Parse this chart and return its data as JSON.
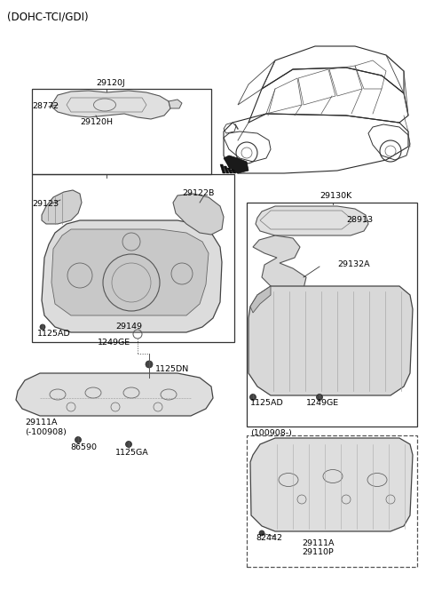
{
  "title": "(DOHC-TCI/GDI)",
  "bg_color": "#ffffff",
  "title_fontsize": 8.5,
  "label_fontsize": 6.8,
  "small_fontsize": 6.2,
  "parts": {
    "main_label": "29120J",
    "gasket_label": "28772",
    "gasket_sub": "29120H",
    "inner_label1": "29123",
    "inner_label2": "29122B",
    "bolt1": "1125AD",
    "bolt2": "29149",
    "bolt3": "1249GE",
    "bolt_dn": "1125DN",
    "right_box_label": "29130K",
    "right_part1": "28913",
    "right_part2": "29132A",
    "right_bolt1": "1125AD",
    "right_bolt2": "1249GE",
    "bottom_left_label1": "29111A",
    "bottom_left_label2": "(-100908)",
    "bottom_left_bolt1": "86590",
    "bottom_left_bolt2": "1125GA",
    "bottom_right_box": "(100908-)",
    "bottom_right_bolt": "82442",
    "bottom_right_label1": "29111A",
    "bottom_right_label2": "29110P"
  }
}
